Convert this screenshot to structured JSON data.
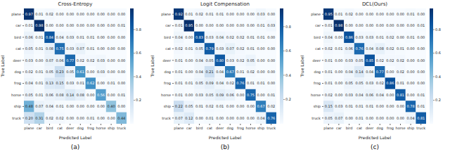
{
  "chart_data": [
    {
      "type": "heatmap",
      "title": "Cross-Entropy",
      "caption": "(a)",
      "x_label": "Predicted Label",
      "y_label": "True Label",
      "data_labels": true,
      "categories": [
        "plane",
        "car",
        "bird",
        "cat",
        "deer",
        "dog",
        "frog",
        "horse",
        "ship",
        "truck"
      ],
      "cells": [
        [
          0.97,
          0.01,
          0.02,
          0.0,
          0.0,
          0.0,
          0.0,
          0.0,
          0.0,
          0.0
        ],
        [
          0.01,
          0.98,
          0.0,
          0.0,
          0.0,
          0.0,
          0.0,
          0.0,
          0.0,
          0.01
        ],
        [
          0.06,
          0.01,
          0.84,
          0.04,
          0.03,
          0.01,
          0.01,
          0.0,
          0.0,
          0.0
        ],
        [
          0.05,
          0.01,
          0.08,
          0.75,
          0.03,
          0.07,
          0.01,
          0.0,
          0.0,
          0.0
        ],
        [
          0.03,
          0.0,
          0.07,
          0.06,
          0.77,
          0.02,
          0.02,
          0.03,
          0.0,
          0.0
        ],
        [
          0.02,
          0.01,
          0.05,
          0.23,
          0.05,
          0.61,
          0.0,
          0.03,
          0.0,
          0.0
        ],
        [
          0.04,
          0.01,
          0.13,
          0.15,
          0.03,
          0.01,
          0.62,
          0.0,
          0.01,
          0.0
        ],
        [
          0.05,
          0.01,
          0.06,
          0.08,
          0.14,
          0.08,
          0.0,
          0.56,
          0.0,
          0.01
        ],
        [
          0.48,
          0.07,
          0.04,
          0.01,
          0.0,
          0.0,
          0.0,
          0.0,
          0.4,
          0.0
        ],
        [
          0.2,
          0.31,
          0.02,
          0.02,
          0.0,
          0.0,
          0.01,
          0.0,
          0.0,
          0.44
        ]
      ],
      "value_labels": [
        [
          "0.97",
          "0.01",
          "0.02",
          "0.00",
          "0.00",
          "0.00",
          "0.00",
          "0.00",
          "0.00",
          "0.00"
        ],
        [
          "0.01",
          "0.98",
          "0.00",
          "0.00",
          "0.00",
          "0.00",
          "0.00",
          "0.00",
          "0.00",
          "0.01"
        ],
        [
          "0.06",
          "0.01",
          "0.84",
          "0.04",
          "0.03",
          "0.01",
          "0.01",
          "0.00",
          "0.00",
          "0.00"
        ],
        [
          "0.05",
          "0.01",
          "0.08",
          "0.75",
          "0.03",
          "0.07",
          "0.01",
          "0.00",
          "0.00",
          "0.00"
        ],
        [
          "0.03",
          "0.00",
          "0.07",
          "0.06",
          "0.77",
          "0.02",
          "0.02",
          "0.03",
          "0.00",
          "0.00"
        ],
        [
          "0.02",
          "0.01",
          "0.05",
          "0.23",
          "0.05",
          "0.61",
          "0.00",
          "0.03",
          "0.00",
          "0.00"
        ],
        [
          "0.04",
          "0.01",
          "0.13",
          "0.15",
          "0.03",
          "0.01",
          "0.62",
          "0.00",
          "0.01",
          "0.00"
        ],
        [
          "0.05",
          "0.01",
          "0.06",
          "0.08",
          "0.14",
          "0.08",
          "0.00",
          "0.56",
          "0.00",
          "0.01"
        ],
        [
          "0.48",
          "0.07",
          "0.04",
          "0.01",
          "0.00",
          "0.00",
          "0.00",
          "0.00",
          "0.40",
          "0.00"
        ],
        [
          "0.20",
          "0.31",
          "0.02",
          "0.02",
          "0.00",
          "0.00",
          "0.01",
          "0.00",
          "0.00",
          "0.44"
        ]
      ],
      "colorbar": {
        "range": [
          0,
          0.98
        ],
        "ticks": [
          0.2,
          0.4,
          0.6,
          0.8
        ]
      }
    },
    {
      "type": "heatmap",
      "title": "Logit Compensation",
      "caption": "(b)",
      "x_label": "Predicted Label",
      "y_label": "True Label",
      "data_labels": true,
      "categories": [
        "plane",
        "car",
        "bird",
        "cat",
        "deer",
        "dog",
        "frog",
        "horse",
        "ship",
        "truck"
      ],
      "cells": [
        [
          0.92,
          0.01,
          0.02,
          0.01,
          0.01,
          0.0,
          0.0,
          0.0,
          0.03,
          0.0
        ],
        [
          0.01,
          0.95,
          0.0,
          0.0,
          0.0,
          0.0,
          0.0,
          0.0,
          0.01,
          0.03
        ],
        [
          0.04,
          0.0,
          0.83,
          0.03,
          0.04,
          0.02,
          0.02,
          0.01,
          0.01,
          0.0
        ],
        [
          0.02,
          0.01,
          0.05,
          0.79,
          0.03,
          0.07,
          0.02,
          0.01,
          0.0,
          0.0
        ],
        [
          0.01,
          0.0,
          0.04,
          0.05,
          0.8,
          0.03,
          0.02,
          0.05,
          0.0,
          0.0
        ],
        [
          0.01,
          0.0,
          0.04,
          0.21,
          0.04,
          0.67,
          0.01,
          0.02,
          0.0,
          0.0
        ],
        [
          0.01,
          0.01,
          0.05,
          0.09,
          0.04,
          0.02,
          0.76,
          0.01,
          0.01,
          0.0
        ],
        [
          0.01,
          0.0,
          0.03,
          0.05,
          0.09,
          0.06,
          0.0,
          0.75,
          0.0,
          0.01
        ],
        [
          0.22,
          0.05,
          0.01,
          0.02,
          0.01,
          0.0,
          0.0,
          0.0,
          0.67,
          0.02
        ],
        [
          0.07,
          0.12,
          0.0,
          0.01,
          0.0,
          0.0,
          0.0,
          0.0,
          0.04,
          0.76
        ]
      ],
      "value_labels": [
        [
          "0.92",
          "0.01",
          "0.02",
          "0.01",
          "0.01",
          "0.00",
          "0.00",
          "0.00",
          "0.03",
          "0.00"
        ],
        [
          "0.01",
          "0.95",
          "0.00",
          "0.00",
          "0.00",
          "0.00",
          "0.00",
          "0.00",
          "0.01",
          "0.03"
        ],
        [
          "0.04",
          "0.00",
          "0.83",
          "0.03",
          "0.04",
          "0.02",
          "0.02",
          "0.01",
          "0.01",
          "0.00"
        ],
        [
          "0.02",
          "0.01",
          "0.05",
          "0.79",
          "0.03",
          "0.07",
          "0.02",
          "0.01",
          "0.00",
          "0.00"
        ],
        [
          "0.01",
          "0.00",
          "0.04",
          "0.05",
          "0.80",
          "0.03",
          "0.02",
          "0.05",
          "0.00",
          "0.00"
        ],
        [
          "0.01",
          "0.00",
          "0.04",
          "0.21",
          "0.04",
          "0.67",
          "0.01",
          "0.02",
          "0.00",
          "0.00"
        ],
        [
          "0.01",
          "0.01",
          "0.05",
          "0.09",
          "0.04",
          "0.02",
          "0.76",
          "0.01",
          "0.01",
          "0.00"
        ],
        [
          "0.01",
          "0.00",
          "0.03",
          "0.05",
          "0.09",
          "0.06",
          "0.00",
          "0.75",
          "0.00",
          "0.01"
        ],
        [
          "0.22",
          "0.05",
          "0.01",
          "0.02",
          "0.01",
          "0.00",
          "0.00",
          "0.00",
          "0.67",
          "0.02"
        ],
        [
          "0.07",
          "0.12",
          "0.00",
          "0.01",
          "0.00",
          "0.00",
          "0.00",
          "0.00",
          "0.04",
          "0.76"
        ]
      ],
      "colorbar": {
        "range": [
          0,
          0.95
        ],
        "ticks": [
          0.2,
          0.4,
          0.6,
          0.8
        ]
      }
    },
    {
      "type": "heatmap",
      "title": "DCL(Ours)",
      "caption": "(c)",
      "x_label": "Predicted Label",
      "y_label": "True Label",
      "data_labels": true,
      "categories": [
        "plane",
        "car",
        "bird",
        "cat",
        "deer",
        "dog",
        "frog",
        "horse",
        "ship",
        "truck"
      ],
      "cells": [
        [
          0.95,
          0.01,
          0.02,
          0.0,
          0.0,
          0.0,
          0.0,
          0.0,
          0.01,
          0.0
        ],
        [
          0.01,
          0.98,
          0.0,
          0.0,
          0.0,
          0.0,
          0.0,
          0.0,
          0.0,
          0.01
        ],
        [
          0.04,
          0.0,
          0.86,
          0.03,
          0.03,
          0.01,
          0.02,
          0.0,
          0.01,
          0.0
        ],
        [
          0.02,
          0.01,
          0.06,
          0.76,
          0.04,
          0.08,
          0.02,
          0.01,
          0.0,
          0.0
        ],
        [
          0.01,
          0.0,
          0.03,
          0.05,
          0.85,
          0.02,
          0.02,
          0.02,
          0.0,
          0.0
        ],
        [
          0.01,
          0.0,
          0.04,
          0.14,
          0.04,
          0.77,
          0.0,
          0.02,
          0.0,
          0.0
        ],
        [
          0.01,
          0.0,
          0.05,
          0.05,
          0.03,
          0.02,
          0.86,
          0.01,
          0.0,
          0.0
        ],
        [
          0.02,
          0.0,
          0.03,
          0.04,
          0.06,
          0.04,
          0.0,
          0.81,
          0.0,
          0.01
        ],
        [
          0.15,
          0.03,
          0.01,
          0.01,
          0.01,
          0.0,
          0.0,
          0.0,
          0.78,
          0.01
        ],
        [
          0.05,
          0.07,
          0.0,
          0.01,
          0.0,
          0.0,
          0.0,
          0.0,
          0.04,
          0.81
        ]
      ],
      "value_labels": [
        [
          "0.95",
          "0.01",
          "0.02",
          "0.00",
          "0.00",
          "0.00",
          "0.00",
          "0.00",
          "0.01",
          "0.00"
        ],
        [
          "0.01",
          "0.98",
          "0.00",
          "0.00",
          "0.00",
          "0.00",
          "0.00",
          "0.00",
          "0.00",
          "0.01"
        ],
        [
          "0.04",
          "0.00",
          "0.86",
          "0.03",
          "0.03",
          "0.01",
          "0.02",
          "0.00",
          "0.01",
          "0.00"
        ],
        [
          "0.02",
          "0.01",
          "0.06",
          "0.76",
          "0.04",
          "0.08",
          "0.02",
          "0.01",
          "0.00",
          "0.00"
        ],
        [
          "0.01",
          "0.00",
          "0.03",
          "0.05",
          "0.85",
          "0.02",
          "0.02",
          "0.02",
          "0.00",
          "0.00"
        ],
        [
          "0.01",
          "0.00",
          "0.04",
          "0.14",
          "0.04",
          "0.77",
          "0.00",
          "0.02",
          "0.00",
          "0.00"
        ],
        [
          "0.01",
          "0.00",
          "0.05",
          "0.05",
          "0.03",
          "0.02",
          "0.86",
          "0.01",
          "0.00",
          "0.00"
        ],
        [
          "0.02",
          "0.00",
          "0.03",
          "0.04",
          "0.06",
          "0.04",
          "0.00",
          "0.81",
          "0.00",
          "0.01"
        ],
        [
          "0.15",
          "0.03",
          "0.01",
          "0.01",
          "0.01",
          "0.00",
          "0.00",
          "0.00",
          "0.78",
          "0.01"
        ],
        [
          "0.05",
          "0.07",
          "0.00",
          "0.01",
          "0.00",
          "0.00",
          "0.00",
          "0.00",
          "0.04",
          "0.81"
        ]
      ],
      "colorbar": {
        "range": [
          0,
          0.98
        ],
        "ticks": [
          0.2,
          0.4,
          0.6,
          0.8
        ]
      }
    }
  ]
}
